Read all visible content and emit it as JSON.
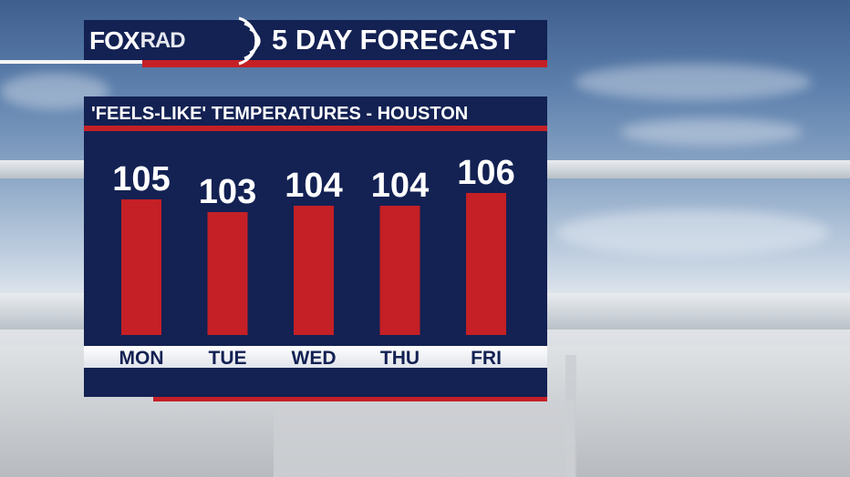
{
  "header": {
    "logo_main": "FOX",
    "logo_sub": "RAD",
    "title": "5 DAY FORECAST"
  },
  "panel": {
    "title": "'FEELS-LIKE' TEMPERATURES - HOUSTON"
  },
  "colors": {
    "navy": "#132153",
    "red": "#c42026",
    "white": "#ffffff"
  },
  "chart_data": {
    "type": "bar",
    "categories": [
      "MON",
      "TUE",
      "WED",
      "THU",
      "FRI"
    ],
    "values": [
      105,
      103,
      104,
      104,
      106
    ],
    "title": "'FEELS-LIKE' TEMPERATURES - HOUSTON",
    "xlabel": "",
    "ylabel": "",
    "grid": false,
    "legend": "none"
  }
}
